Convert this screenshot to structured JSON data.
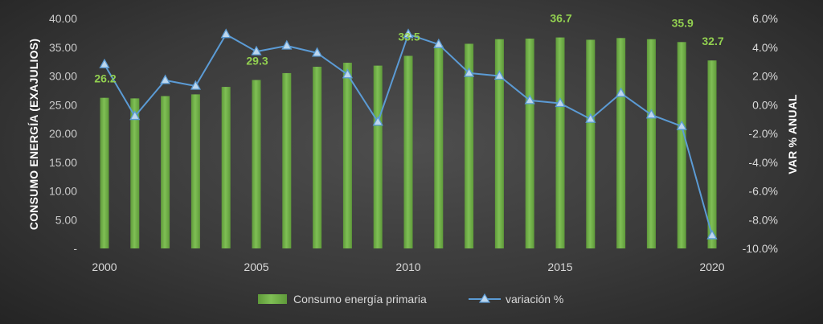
{
  "chart_data": {
    "type": "bar",
    "title": "",
    "xlabel": "",
    "ylabel": "CONSUMO ENERGÍA (EXAJULIOS)",
    "y2label": "VAR % ANUAL",
    "ylim": [
      0,
      40
    ],
    "y2lim": [
      -10,
      6
    ],
    "grid": false,
    "legend_position": "bottom",
    "years": [
      2000,
      2001,
      2002,
      2003,
      2004,
      2005,
      2006,
      2007,
      2008,
      2009,
      2010,
      2011,
      2012,
      2013,
      2014,
      2015,
      2016,
      2017,
      2018,
      2019,
      2020
    ],
    "x_tick_labels": [
      "2000",
      "2005",
      "2010",
      "2015",
      "2020"
    ],
    "y_tick_labels": [
      "-",
      "5.00",
      "10.00",
      "15.00",
      "20.00",
      "25.00",
      "30.00",
      "35.00",
      "40.00"
    ],
    "y2_tick_labels": [
      "-10.0%",
      "-8.0%",
      "-6.0%",
      "-4.0%",
      "-2.0%",
      "0.0%",
      "2.0%",
      "4.0%",
      "6.0%"
    ],
    "series": [
      {
        "name": "Consumo energía primaria",
        "kind": "bar",
        "axis": "left",
        "color": "#70ad47",
        "values": [
          26.2,
          26.1,
          26.5,
          26.8,
          28.1,
          29.3,
          30.5,
          31.6,
          32.3,
          31.8,
          33.5,
          35.3,
          35.6,
          36.4,
          36.5,
          36.7,
          36.3,
          36.6,
          36.4,
          35.9,
          32.7
        ]
      },
      {
        "name": "variación %",
        "kind": "line",
        "axis": "right",
        "color": "#5b9bd5",
        "values": [
          2.8,
          -0.8,
          1.7,
          1.3,
          4.9,
          3.7,
          4.1,
          3.6,
          2.1,
          -1.2,
          4.9,
          4.2,
          2.2,
          2.0,
          0.3,
          0.1,
          -1.0,
          0.8,
          -0.7,
          -1.5,
          -9.1
        ]
      }
    ],
    "data_labels": [
      {
        "year": 2000,
        "text": "26.2"
      },
      {
        "year": 2005,
        "text": "29.3"
      },
      {
        "year": 2010,
        "text": "33.5"
      },
      {
        "year": 2015,
        "text": "36.7"
      },
      {
        "year": 2019,
        "text": "35.9"
      },
      {
        "year": 2020,
        "text": "32.7"
      }
    ],
    "colors": {
      "bar": "#70ad47",
      "line": "#5b9bd5",
      "marker_fill": "#bdd7ee",
      "label": "#92d050"
    }
  }
}
